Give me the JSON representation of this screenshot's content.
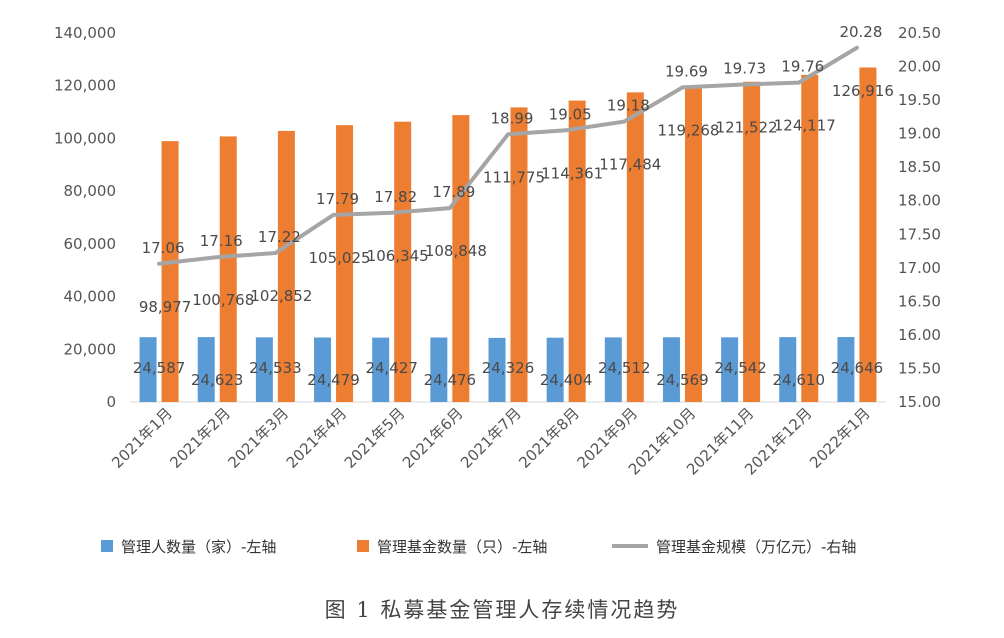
{
  "chart_data": {
    "type": "bar",
    "categories": [
      "2021年1月",
      "2021年2月",
      "2021年3月",
      "2021年4月",
      "2021年5月",
      "2021年6月",
      "2021年7月",
      "2021年8月",
      "2021年9月",
      "2021年10月",
      "2021年11月",
      "2021年12月",
      "2022年1月"
    ],
    "series": [
      {
        "name": "管理人数量（家）-左轴",
        "type": "bar",
        "axis": "left",
        "color": "#5B9BD5",
        "values": [
          24587,
          24623,
          24533,
          24479,
          24427,
          24476,
          24326,
          24404,
          24512,
          24569,
          24542,
          24610,
          24646
        ],
        "labels": [
          "24,587",
          "24,623",
          "24,533",
          "24,479",
          "24,427",
          "24,476",
          "24,326",
          "24,404",
          "24,512",
          "24,569",
          "24,542",
          "24,610",
          "24,646"
        ]
      },
      {
        "name": "管理基金数量（只）-左轴",
        "type": "bar",
        "axis": "left",
        "color": "#ED7D31",
        "values": [
          98977,
          100768,
          102852,
          105025,
          106345,
          108848,
          111775,
          114361,
          117484,
          119268,
          121522,
          124117,
          126916
        ],
        "labels": [
          "98,977",
          "100,768",
          "102,852",
          "105,025",
          "106,345",
          "108,848",
          "111,775",
          "114,361",
          "117,484",
          "119,268",
          "121,522",
          "124,117",
          "126,916"
        ]
      },
      {
        "name": "管理基金规模（万亿元）-右轴",
        "type": "line",
        "axis": "right",
        "color": "#A5A5A5",
        "values": [
          17.06,
          17.16,
          17.22,
          17.79,
          17.82,
          17.89,
          18.99,
          19.05,
          19.18,
          19.69,
          19.73,
          19.76,
          20.28
        ],
        "labels": [
          "17.06",
          "17.16",
          "17.22",
          "17.79",
          "17.82",
          "17.89",
          "18.99",
          "19.05",
          "19.18",
          "19.69",
          "19.73",
          "19.76",
          "20.28"
        ]
      }
    ],
    "ylim_left": [
      0,
      140000
    ],
    "ylim_right": [
      15,
      20.5
    ],
    "yticks_left": [
      "0",
      "20,000",
      "40,000",
      "60,000",
      "80,000",
      "100,000",
      "120,000",
      "140,000"
    ],
    "yticks_right": [
      "15.00",
      "15.50",
      "16.00",
      "16.50",
      "17.00",
      "17.50",
      "18.00",
      "18.50",
      "19.00",
      "19.50",
      "20.00",
      "20.50"
    ],
    "legend_position": "bottom",
    "grid": false
  },
  "caption": "图 1  私募基金管理人存续情况趋势"
}
